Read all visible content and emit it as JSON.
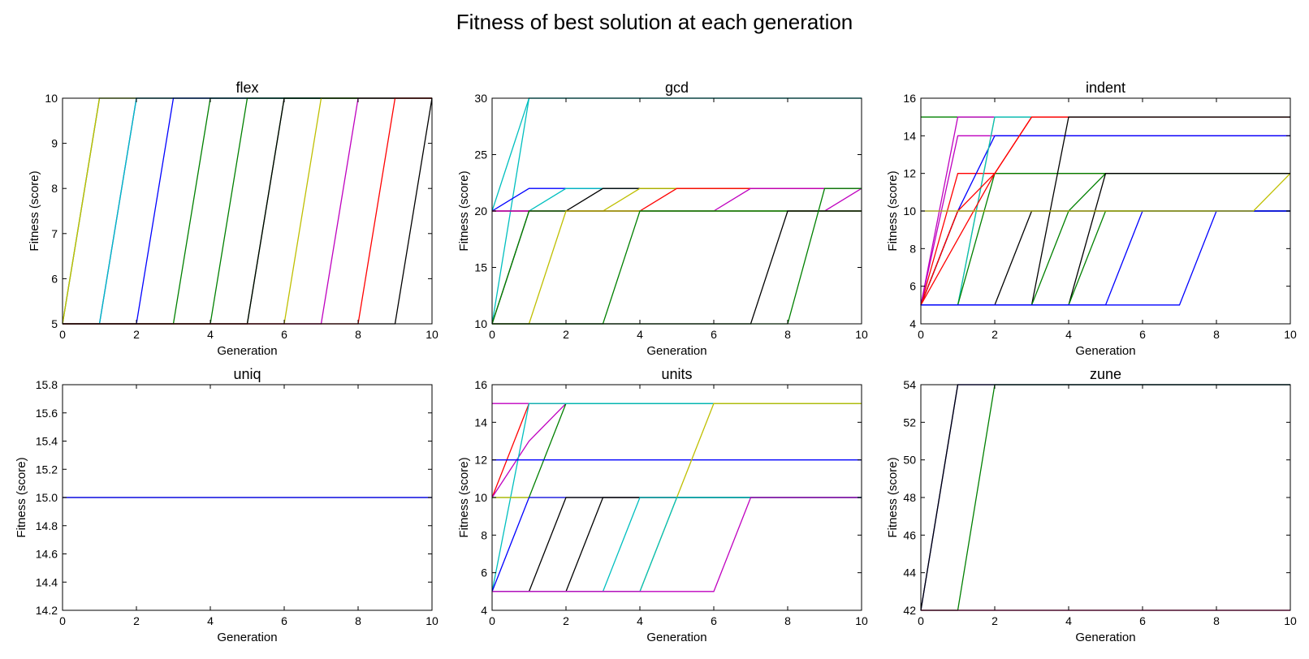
{
  "figure_title": "Fitness of best solution at each generation",
  "colors": {
    "b": "#0000ff",
    "g": "#008000",
    "r": "#ff0000",
    "c": "#00bfbf",
    "m": "#bf00bf",
    "y": "#bfbf00",
    "k": "#000000"
  },
  "chart_data": [
    {
      "type": "line",
      "title": "flex",
      "xlabel": "Generation",
      "ylabel": "Fitness (score)",
      "xlim": [
        0,
        10
      ],
      "ylim": [
        5,
        10
      ],
      "xticks": [
        "0",
        "2",
        "4",
        "6",
        "8",
        "10"
      ],
      "yticks": [
        "5",
        "6",
        "7",
        "8",
        "9",
        "10"
      ],
      "grid": false,
      "series": [
        {
          "color": "g",
          "x": [
            0,
            1,
            10
          ],
          "y": [
            5,
            10,
            10
          ]
        },
        {
          "color": "y",
          "x": [
            0,
            1,
            10
          ],
          "y": [
            5,
            10,
            10
          ]
        },
        {
          "color": "b",
          "x": [
            0,
            1,
            2,
            10
          ],
          "y": [
            5,
            5,
            10,
            10
          ]
        },
        {
          "color": "c",
          "x": [
            0,
            1,
            2,
            10
          ],
          "y": [
            5,
            5,
            10,
            10
          ]
        },
        {
          "color": "b",
          "x": [
            0,
            2,
            3,
            10
          ],
          "y": [
            5,
            5,
            10,
            10
          ]
        },
        {
          "color": "g",
          "x": [
            0,
            3,
            4,
            10
          ],
          "y": [
            5,
            5,
            10,
            10
          ]
        },
        {
          "color": "g",
          "x": [
            0,
            4,
            5,
            10
          ],
          "y": [
            5,
            5,
            10,
            10
          ]
        },
        {
          "color": "g",
          "x": [
            0,
            5,
            6,
            10
          ],
          "y": [
            5,
            5,
            10,
            10
          ]
        },
        {
          "color": "k",
          "x": [
            0,
            5,
            6,
            10
          ],
          "y": [
            5,
            5,
            10,
            10
          ]
        },
        {
          "color": "y",
          "x": [
            0,
            6,
            7,
            10
          ],
          "y": [
            5,
            5,
            10,
            10
          ]
        },
        {
          "color": "m",
          "x": [
            0,
            7,
            8,
            10
          ],
          "y": [
            5,
            5,
            10,
            10
          ]
        },
        {
          "color": "r",
          "x": [
            0,
            8,
            9,
            10
          ],
          "y": [
            5,
            5,
            10,
            10
          ]
        },
        {
          "color": "k",
          "x": [
            0,
            9,
            10
          ],
          "y": [
            5,
            5,
            10
          ]
        }
      ]
    },
    {
      "type": "line",
      "title": "gcd",
      "xlabel": "Generation",
      "ylabel": "Fitness (score)",
      "xlim": [
        0,
        10
      ],
      "ylim": [
        10,
        30
      ],
      "xticks": [
        "0",
        "2",
        "4",
        "6",
        "8",
        "10"
      ],
      "yticks": [
        "10",
        "15",
        "20",
        "25",
        "30"
      ],
      "grid": false,
      "series": [
        {
          "color": "c",
          "x": [
            0,
            1,
            10
          ],
          "y": [
            20,
            30,
            30
          ]
        },
        {
          "color": "c",
          "x": [
            0,
            1,
            10
          ],
          "y": [
            10,
            30,
            30
          ]
        },
        {
          "color": "b",
          "x": [
            0,
            1,
            10
          ],
          "y": [
            20,
            22,
            22
          ]
        },
        {
          "color": "c",
          "x": [
            0,
            1,
            2,
            10
          ],
          "y": [
            20,
            20,
            22,
            22
          ]
        },
        {
          "color": "k",
          "x": [
            0,
            2,
            3,
            10
          ],
          "y": [
            20,
            20,
            22,
            22
          ]
        },
        {
          "color": "y",
          "x": [
            0,
            3,
            4,
            10
          ],
          "y": [
            20,
            20,
            22,
            22
          ]
        },
        {
          "color": "r",
          "x": [
            0,
            4,
            5,
            10
          ],
          "y": [
            20,
            20,
            22,
            22
          ]
        },
        {
          "color": "m",
          "x": [
            0,
            6,
            7,
            10
          ],
          "y": [
            20,
            20,
            22,
            22
          ]
        },
        {
          "color": "m",
          "x": [
            0,
            9,
            10
          ],
          "y": [
            20,
            20,
            22
          ]
        },
        {
          "color": "k",
          "x": [
            0,
            1,
            10
          ],
          "y": [
            10,
            20,
            20
          ]
        },
        {
          "color": "g",
          "x": [
            0,
            1,
            10
          ],
          "y": [
            10,
            20,
            20
          ]
        },
        {
          "color": "y",
          "x": [
            0,
            1,
            2,
            10
          ],
          "y": [
            10,
            10,
            20,
            20
          ]
        },
        {
          "color": "g",
          "x": [
            0,
            3,
            4,
            10
          ],
          "y": [
            10,
            10,
            20,
            20
          ]
        },
        {
          "color": "k",
          "x": [
            0,
            7,
            8,
            10
          ],
          "y": [
            10,
            10,
            20,
            20
          ]
        },
        {
          "color": "g",
          "x": [
            0,
            8,
            9,
            10
          ],
          "y": [
            10,
            10,
            22,
            22
          ]
        }
      ]
    },
    {
      "type": "line",
      "title": "indent",
      "xlabel": "Generation",
      "ylabel": "Fitness (score)",
      "xlim": [
        0,
        10
      ],
      "ylim": [
        4,
        16
      ],
      "xticks": [
        "0",
        "2",
        "4",
        "6",
        "8",
        "10"
      ],
      "yticks": [
        "4",
        "6",
        "8",
        "10",
        "12",
        "14",
        "16"
      ],
      "grid": false,
      "series": [
        {
          "color": "g",
          "x": [
            0,
            10
          ],
          "y": [
            15,
            15
          ]
        },
        {
          "color": "m",
          "x": [
            0,
            1,
            10
          ],
          "y": [
            5,
            15,
            15
          ]
        },
        {
          "color": "r",
          "x": [
            0,
            1,
            10
          ],
          "y": [
            5,
            12,
            12
          ]
        },
        {
          "color": "m",
          "x": [
            0,
            1,
            10
          ],
          "y": [
            5,
            14,
            14
          ]
        },
        {
          "color": "b",
          "x": [
            0,
            1,
            2,
            10
          ],
          "y": [
            5,
            10,
            14,
            14
          ]
        },
        {
          "color": "k",
          "x": [
            0,
            1,
            10
          ],
          "y": [
            5,
            10,
            10
          ]
        },
        {
          "color": "b",
          "x": [
            0,
            10
          ],
          "y": [
            10,
            10
          ]
        },
        {
          "color": "y",
          "x": [
            0,
            1,
            2,
            10
          ],
          "y": [
            5,
            5,
            15,
            15
          ]
        },
        {
          "color": "c",
          "x": [
            0,
            1,
            2,
            10
          ],
          "y": [
            5,
            5,
            15,
            15
          ]
        },
        {
          "color": "g",
          "x": [
            0,
            1,
            2,
            5,
            10
          ],
          "y": [
            5,
            5,
            12,
            12,
            12
          ]
        },
        {
          "color": "r",
          "x": [
            0,
            1,
            2,
            3,
            10
          ],
          "y": [
            5,
            10,
            12,
            15,
            15
          ]
        },
        {
          "color": "r",
          "x": [
            0,
            2,
            3,
            10
          ],
          "y": [
            5,
            12,
            15,
            15
          ]
        },
        {
          "color": "k",
          "x": [
            0,
            3,
            4,
            10
          ],
          "y": [
            5,
            5,
            15,
            15
          ]
        },
        {
          "color": "k",
          "x": [
            0,
            2,
            3,
            10
          ],
          "y": [
            5,
            5,
            10,
            10
          ]
        },
        {
          "color": "g",
          "x": [
            0,
            3,
            4,
            5,
            10
          ],
          "y": [
            5,
            5,
            10,
            12,
            12
          ]
        },
        {
          "color": "k",
          "x": [
            0,
            4,
            5,
            10
          ],
          "y": [
            5,
            5,
            12,
            12
          ]
        },
        {
          "color": "g",
          "x": [
            0,
            4,
            5,
            10
          ],
          "y": [
            5,
            5,
            10,
            10
          ]
        },
        {
          "color": "b",
          "x": [
            0,
            5,
            6,
            10
          ],
          "y": [
            5,
            5,
            10,
            10
          ]
        },
        {
          "color": "b",
          "x": [
            0,
            7,
            8,
            10
          ],
          "y": [
            5,
            5,
            10,
            10
          ]
        },
        {
          "color": "y",
          "x": [
            0,
            9,
            10
          ],
          "y": [
            10,
            10,
            12
          ]
        }
      ]
    },
    {
      "type": "line",
      "title": "uniq",
      "xlabel": "Generation",
      "ylabel": "Fitness (score)",
      "xlim": [
        0,
        10
      ],
      "ylim": [
        14.2,
        15.8
      ],
      "xticks": [
        "0",
        "2",
        "4",
        "6",
        "8",
        "10"
      ],
      "yticks": [
        "14.2",
        "14.4",
        "14.6",
        "14.8",
        "15.0",
        "15.2",
        "15.4",
        "15.6",
        "15.8"
      ],
      "grid": false,
      "series": [
        {
          "color": "k",
          "x": [
            0,
            10
          ],
          "y": [
            15,
            15
          ]
        },
        {
          "color": "b",
          "x": [
            0,
            10
          ],
          "y": [
            15,
            15
          ]
        }
      ]
    },
    {
      "type": "line",
      "title": "units",
      "xlabel": "Generation",
      "ylabel": "Fitness (score)",
      "xlim": [
        0,
        10
      ],
      "ylim": [
        4,
        16
      ],
      "xticks": [
        "0",
        "2",
        "4",
        "6",
        "8",
        "10"
      ],
      "yticks": [
        "4",
        "6",
        "8",
        "10",
        "12",
        "14",
        "16"
      ],
      "grid": false,
      "series": [
        {
          "color": "m",
          "x": [
            0,
            10
          ],
          "y": [
            15,
            15
          ]
        },
        {
          "color": "r",
          "x": [
            0,
            1,
            10
          ],
          "y": [
            10,
            15,
            15
          ]
        },
        {
          "color": "m",
          "x": [
            0,
            1,
            2,
            10
          ],
          "y": [
            10,
            13,
            15,
            15
          ]
        },
        {
          "color": "g",
          "x": [
            0,
            1,
            2,
            10
          ],
          "y": [
            10,
            10,
            15,
            15
          ]
        },
        {
          "color": "c",
          "x": [
            0,
            1,
            10
          ],
          "y": [
            5,
            15,
            15
          ]
        },
        {
          "color": "b",
          "x": [
            0,
            10
          ],
          "y": [
            12,
            12
          ]
        },
        {
          "color": "y",
          "x": [
            0,
            10
          ],
          "y": [
            10,
            10
          ]
        },
        {
          "color": "b",
          "x": [
            0,
            1,
            10
          ],
          "y": [
            5,
            10,
            10
          ]
        },
        {
          "color": "k",
          "x": [
            0,
            1,
            2,
            10
          ],
          "y": [
            5,
            5,
            10,
            10
          ]
        },
        {
          "color": "k",
          "x": [
            0,
            2,
            3,
            10
          ],
          "y": [
            5,
            5,
            10,
            10
          ]
        },
        {
          "color": "c",
          "x": [
            0,
            3,
            4,
            10
          ],
          "y": [
            5,
            5,
            10,
            10
          ]
        },
        {
          "color": "y",
          "x": [
            0,
            4,
            5,
            6,
            10
          ],
          "y": [
            5,
            5,
            10,
            15,
            15
          ]
        },
        {
          "color": "c",
          "x": [
            0,
            4,
            5,
            10
          ],
          "y": [
            5,
            5,
            10,
            10
          ]
        },
        {
          "color": "m",
          "x": [
            0,
            6,
            7,
            10
          ],
          "y": [
            5,
            5,
            10,
            10
          ]
        }
      ]
    },
    {
      "type": "line",
      "title": "zune",
      "xlabel": "Generation",
      "ylabel": "Fitness (score)",
      "xlim": [
        0,
        10
      ],
      "ylim": [
        42,
        54
      ],
      "xticks": [
        "0",
        "2",
        "4",
        "6",
        "8",
        "10"
      ],
      "yticks": [
        "42",
        "44",
        "46",
        "48",
        "50",
        "52",
        "54"
      ],
      "grid": false,
      "series": [
        {
          "color": "b",
          "x": [
            0,
            1,
            10
          ],
          "y": [
            42,
            54,
            54
          ]
        },
        {
          "color": "k",
          "x": [
            0,
            1,
            10
          ],
          "y": [
            42,
            54,
            54
          ]
        },
        {
          "color": "g",
          "x": [
            0,
            1,
            2,
            10
          ],
          "y": [
            42,
            42,
            54,
            54
          ]
        },
        {
          "color": "r",
          "x": [
            0,
            10
          ],
          "y": [
            42,
            42
          ]
        },
        {
          "color": "m",
          "x": [
            0,
            10
          ],
          "y": [
            42,
            42
          ]
        }
      ]
    }
  ]
}
